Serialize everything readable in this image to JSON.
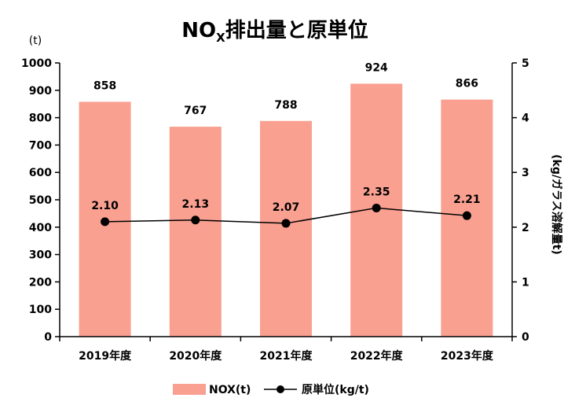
{
  "chart_data": {
    "type": "bar+line",
    "title": {
      "main": "NO",
      "sub": "X",
      "rest": "排出量と原単位"
    },
    "categories": [
      "2019年度",
      "2020年度",
      "2021年度",
      "2022年度",
      "2023年度"
    ],
    "series": [
      {
        "name": "NOX(t)",
        "type": "bar",
        "axis": "left",
        "color": "#F9A091",
        "values": [
          858,
          767,
          788,
          924,
          866
        ],
        "labels": [
          "858",
          "767",
          "788",
          "924",
          "866"
        ]
      },
      {
        "name": "原単位(kg/t)",
        "type": "line",
        "axis": "right",
        "color": "#000000",
        "values": [
          2.1,
          2.13,
          2.07,
          2.35,
          2.21
        ],
        "labels": [
          "2.10",
          "2.13",
          "2.07",
          "2.35",
          "2.21"
        ]
      }
    ],
    "y_left": {
      "unit": "(t)",
      "min": 0,
      "max": 1000,
      "step": 100,
      "ticks": [
        "0",
        "100",
        "200",
        "300",
        "400",
        "500",
        "600",
        "700",
        "800",
        "900",
        "1000"
      ]
    },
    "y_right": {
      "label": "(kg/ガラス溶解量t)",
      "min": 0,
      "max": 5,
      "step": 1,
      "ticks": [
        "0",
        "1",
        "2",
        "3",
        "4",
        "5"
      ]
    },
    "grid": false,
    "legend_position": "bottom"
  }
}
